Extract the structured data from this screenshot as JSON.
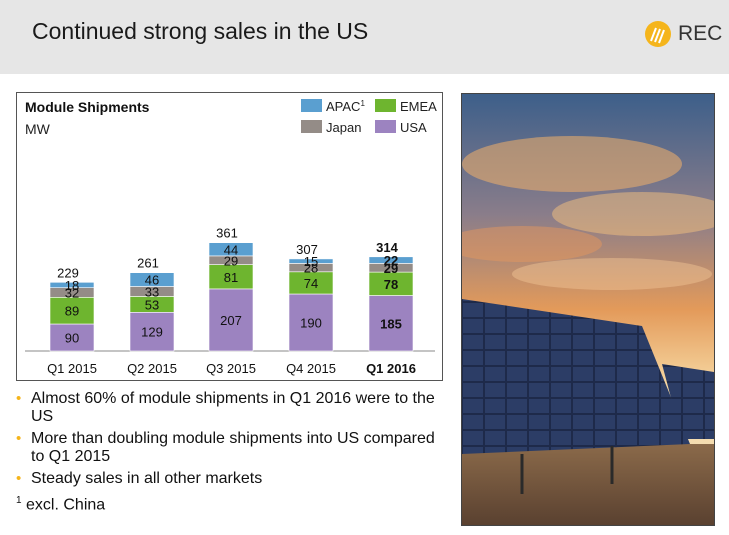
{
  "header": {
    "title": "Continued strong sales in the US",
    "logo_text": "REC"
  },
  "colors": {
    "apac": "#5a9fd0",
    "emea": "#6eb52f",
    "japan": "#948c87",
    "usa": "#9c83c0",
    "accent": "#f5b51c"
  },
  "chart_data": {
    "type": "bar",
    "stacked": true,
    "title": "Module Shipments",
    "ylabel": "MW",
    "categories": [
      "Q1 2015",
      "Q2 2015",
      "Q3 2015",
      "Q4 2015",
      "Q1 2016"
    ],
    "highlight_category": "Q1 2016",
    "series": [
      {
        "name": "USA",
        "key": "usa",
        "values": [
          90,
          129,
          207,
          190,
          185
        ]
      },
      {
        "name": "EMEA",
        "key": "emea",
        "values": [
          89,
          53,
          81,
          74,
          78
        ]
      },
      {
        "name": "Japan",
        "key": "japan",
        "values": [
          32,
          33,
          29,
          28,
          29
        ]
      },
      {
        "name": "APAC",
        "key": "apac",
        "values": [
          18,
          46,
          44,
          15,
          22
        ]
      }
    ],
    "totals": [
      229,
      261,
      361,
      307,
      314
    ],
    "legend": {
      "placement": "top-right",
      "entries": [
        {
          "label": "APAC",
          "superscript": "1",
          "key": "apac"
        },
        {
          "label": "EMEA",
          "superscript": "",
          "key": "emea"
        },
        {
          "label": "Japan",
          "superscript": "",
          "key": "japan"
        },
        {
          "label": "USA",
          "superscript": "",
          "key": "usa"
        }
      ]
    }
  },
  "bullets": [
    "Almost 60% of module shipments in Q1 2016 were to the US",
    "More than doubling module shipments into US compared to Q1 2015",
    "Steady sales in all other markets"
  ],
  "footnote": {
    "marker": "1",
    "text": "excl. China"
  }
}
